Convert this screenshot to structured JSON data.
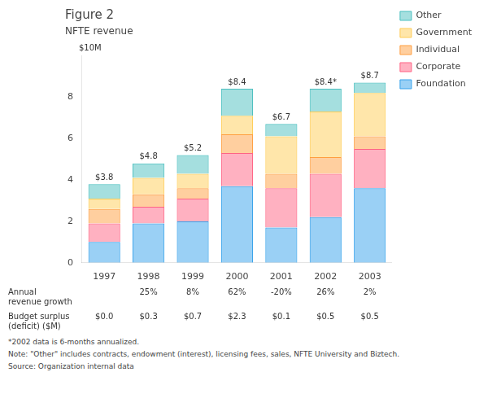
{
  "chart_data": {
    "type": "bar",
    "title": "Figure 2",
    "subtitle": "NFTE revenue",
    "ylabel": "$10M",
    "categories": [
      "1997",
      "1998",
      "1999",
      "2000",
      "2001",
      "2002",
      "2003"
    ],
    "series": [
      {
        "name": "Foundation",
        "values": [
          1.0,
          1.9,
          2.0,
          3.7,
          1.7,
          2.2,
          3.6
        ]
      },
      {
        "name": "Corporate",
        "values": [
          0.9,
          0.8,
          1.1,
          1.6,
          1.9,
          2.1,
          1.9
        ]
      },
      {
        "name": "Individual",
        "values": [
          0.7,
          0.6,
          0.5,
          0.9,
          0.7,
          0.8,
          0.6
        ]
      },
      {
        "name": "Government",
        "values": [
          0.5,
          0.8,
          0.7,
          0.9,
          1.8,
          2.2,
          2.1
        ]
      },
      {
        "name": "Other",
        "values": [
          0.7,
          0.7,
          0.9,
          1.3,
          0.6,
          1.1,
          0.5
        ]
      }
    ],
    "stacked": true,
    "ylim": [
      0,
      10
    ],
    "yticks": [
      0,
      2,
      4,
      6,
      8
    ],
    "grid": false,
    "legend": "right",
    "annotations": [
      {
        "category": "1997",
        "y": 3.8,
        "text": "$3.8"
      },
      {
        "category": "1998",
        "y": 4.8,
        "text": "$4.8"
      },
      {
        "category": "1999",
        "y": 5.2,
        "text": "$5.2"
      },
      {
        "category": "2000",
        "y": 8.4,
        "text": "$8.4"
      },
      {
        "category": "2001",
        "y": 6.7,
        "text": "$6.7"
      },
      {
        "category": "2002",
        "y": 8.4,
        "text": "$8.4*"
      },
      {
        "category": "2003",
        "y": 8.7,
        "text": "$8.7"
      }
    ],
    "table": [
      {
        "label": "Annual\nrevenue growth",
        "values": [
          null,
          25,
          8,
          62,
          -20,
          26,
          2
        ],
        "value_labels": [
          null,
          "25%",
          "8%",
          "62%",
          "-20%",
          "26%",
          "2%"
        ]
      },
      {
        "label": "Budget surplus\n(deficit) ($M)",
        "values": [
          0.0,
          0.3,
          0.7,
          2.3,
          0.1,
          0.5,
          0.5
        ],
        "value_labels": [
          "$0.0",
          "$0.3",
          "$0.7",
          "$2.3",
          "$0.1",
          "$0.5",
          "$0.5"
        ]
      }
    ],
    "footnotes": [
      "*2002 data is 6-months annualized.",
      "Note: \"Other\" includes contracts, endowment (interest), licensing fees, sales, NFTE University and Biztech.",
      "Source: Organization internal data"
    ]
  }
}
